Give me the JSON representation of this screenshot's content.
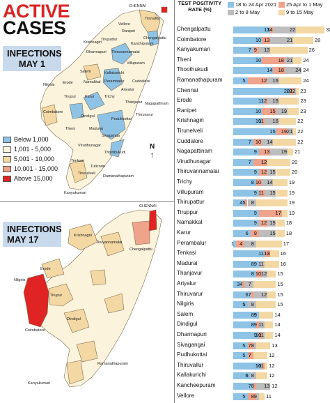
{
  "left_panel": {
    "title_line1": "ACTIVE",
    "title_line2": "CASES",
    "map1_label_line1": "INFECTIONS",
    "map1_label_line2": "MAY 1",
    "map2_label_line1": "INFECTIONS",
    "map2_label_line2": "MAY 17",
    "compass": "N",
    "legend": [
      {
        "label": "Below 1,000",
        "color": "#8ec3e6"
      },
      {
        "label": "1,001 - 5,000",
        "color": "#fbf3dc"
      },
      {
        "label": "5,001 - 10,000",
        "color": "#f3d8a3"
      },
      {
        "label": "10,001 - 15,000",
        "color": "#efa38a"
      },
      {
        "label": "Above 15,000",
        "color": "#e02323"
      }
    ],
    "map1_places": [
      "CHENNAI",
      "Tiruvallur",
      "Chengalpattu",
      "Vellore",
      "Ranipet",
      "Krishnagiri",
      "Tirupattur",
      "Kanchipuram",
      "Dharmapuri",
      "Thiruvannamalai",
      "Villupuram",
      "Salem",
      "Kallakurichi",
      "Cuddalore",
      "Nilgiris",
      "Erode",
      "Namakkal",
      "Perambalur",
      "Ariyalur",
      "Tirupur",
      "Karur",
      "Trichy",
      "Thanjavur",
      "Nagapattinam",
      "Thiruvarur",
      "Coimbatore",
      "Dindigul",
      "Pudukkottai",
      "Theni",
      "Madurai",
      "Sivaganga",
      "Virudhunagar",
      "Ramanathapuram",
      "Tenkasi",
      "Thoothukudi",
      "Tuticorin",
      "Tirunelveli",
      "Kanyakumari"
    ],
    "map2_places": [
      "CHENNAI",
      "Krishnagiri",
      "Tiruvannamalai",
      "Chengalpattu",
      "Erode",
      "Nilgiris",
      "Tirupur",
      "Coimbatore",
      "Dindigul",
      "Ramanathapuram",
      "Kanyakumari"
    ]
  },
  "chart_data": {
    "type": "bar",
    "title": "TEST POSITIVITY RATE (%)",
    "legend_placement": "top",
    "series": [
      {
        "name": "18 to 24 Apr 2021",
        "color": "#8ec3e6"
      },
      {
        "name": "25 Apr to 1 May",
        "color": "#efa38a"
      },
      {
        "name": "2 to 8 May",
        "color": "#bdbdbd"
      },
      {
        "name": "9 to 15 May",
        "color": "#f3d8a3"
      }
    ],
    "rows": [
      {
        "district": "Chengalpattu",
        "values": [
          13,
          14,
          22,
          32
        ]
      },
      {
        "district": "Coimbatore",
        "values": [
          10,
          13,
          21,
          28
        ]
      },
      {
        "district": "Kanyakumari",
        "values": [
          7,
          9,
          13,
          26
        ]
      },
      {
        "district": "Theni",
        "values": [
          10,
          18,
          21,
          24
        ]
      },
      {
        "district": "Thoothukudi",
        "values": [
          14,
          18,
          24,
          24
        ]
      },
      {
        "district": "Ramanathapuram",
        "values": [
          5,
          12,
          16,
          24
        ]
      },
      {
        "district": "Chennai",
        "values": [
          20,
          21,
          22,
          23
        ]
      },
      {
        "district": "Erode",
        "values": [
          11,
          12,
          16,
          23
        ]
      },
      {
        "district": "Ranipet",
        "values": [
          10,
          15,
          19,
          23
        ]
      },
      {
        "district": "Krishnagiri",
        "values": [
          10,
          11,
          16,
          22
        ]
      },
      {
        "district": "Tirunelveli",
        "values": [
          15,
          19,
          21,
          22
        ]
      },
      {
        "district": "Cuddalore",
        "values": [
          7,
          10,
          14,
          22
        ]
      },
      {
        "district": "Nagapattinam",
        "values": [
          9,
          13,
          19,
          21
        ]
      },
      {
        "district": "Virudhunagar",
        "values": [
          7,
          12,
          12,
          20
        ]
      },
      {
        "district": "Thiruvannamalai",
        "values": [
          9,
          12,
          15,
          20
        ]
      },
      {
        "district": "Trichy",
        "values": [
          8,
          10,
          14,
          19
        ]
      },
      {
        "district": "Villupuram",
        "values": [
          9,
          11,
          15,
          19
        ]
      },
      {
        "district": "Thirupattur",
        "values": [
          4,
          5,
          8,
          19
        ]
      },
      {
        "district": "Tiruppur",
        "values": [
          9,
          17,
          17,
          19
        ]
      },
      {
        "district": "Namakkal",
        "values": [
          9,
          12,
          15,
          18
        ]
      },
      {
        "district": "Karur",
        "values": [
          6,
          9,
          15,
          18
        ]
      },
      {
        "district": "Perambalur",
        "values": [
          1,
          4,
          8,
          17
        ]
      },
      {
        "district": "Tenkasi",
        "values": [
          11,
          13,
          13,
          16
        ]
      },
      {
        "district": "Madurai",
        "values": [
          9,
          8,
          11,
          16
        ]
      },
      {
        "district": "Thanjavur",
        "values": [
          8,
          10,
          12,
          15
        ]
      },
      {
        "district": "Ariyalur",
        "values": [
          3,
          4,
          7,
          15
        ]
      },
      {
        "district": "Thiruvarur",
        "values": [
          6,
          7,
          12,
          15
        ]
      },
      {
        "district": "Nilgiris",
        "values": [
          5,
          5,
          8,
          15
        ]
      },
      {
        "district": "Salem",
        "values": [
          9,
          8,
          9,
          14
        ]
      },
      {
        "district": "Dindigul",
        "values": [
          8,
          9,
          11,
          14
        ]
      },
      {
        "district": "Dharmapuri",
        "values": [
          9,
          10,
          11,
          14
        ]
      },
      {
        "district": "Sivagangai",
        "values": [
          5,
          7,
          8,
          13
        ]
      },
      {
        "district": "Pudhukottai",
        "values": [
          5,
          7,
          7,
          12
        ]
      },
      {
        "district": "Thiruvallur",
        "values": [
          10,
          11,
          10,
          12
        ]
      },
      {
        "district": "Kallakurichi",
        "values": [
          6,
          6,
          8,
          12
        ]
      },
      {
        "district": "Kancheepuram",
        "values": [
          7,
          8,
          13,
          12
        ]
      },
      {
        "district": "Vellore",
        "values": [
          5,
          8,
          9,
          11
        ]
      }
    ]
  }
}
